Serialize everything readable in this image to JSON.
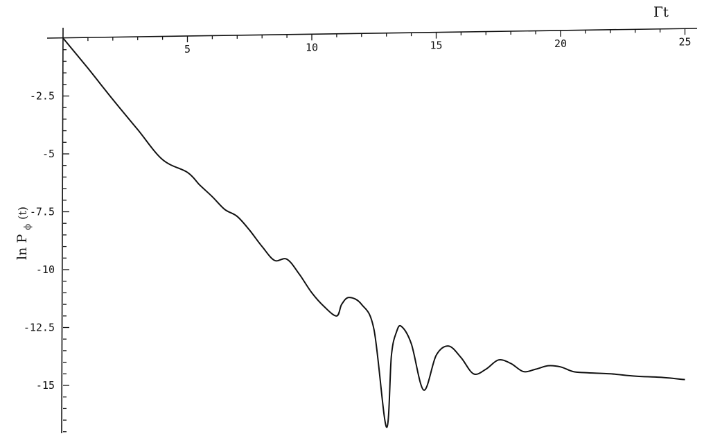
{
  "chart_data": {
    "type": "line",
    "xlabel": "Γt",
    "ylabel": "ln P",
    "ylabel_subscript": "ϕ",
    "ylabel_suffix": "(t)",
    "xlim": [
      0,
      25.5
    ],
    "ylim": [
      -17.3,
      0
    ],
    "grid": false,
    "x_ticks": [
      5,
      10,
      15,
      20,
      25
    ],
    "x_tick_labels": [
      "5",
      "10",
      "15",
      "20",
      "25"
    ],
    "y_ticks": [
      -2.5,
      -5,
      -7.5,
      -10,
      -12.5,
      -15
    ],
    "y_tick_labels": [
      "-2.5",
      "-5",
      "-7.5",
      "-10",
      "-12.5",
      "-15"
    ],
    "series": [
      {
        "x": [
          0,
          1,
          2,
          3,
          4,
          5,
          5.5,
          6,
          6.5,
          7,
          7.5,
          8,
          8.5,
          9,
          9.5,
          10,
          10.5,
          11,
          11.2,
          11.5,
          12,
          12.5,
          13,
          13.2,
          13.4,
          13.6,
          14,
          14.5,
          15,
          15.5,
          16,
          16.5,
          17,
          17.5,
          18,
          18.5,
          19,
          19.5,
          20,
          20.5,
          21,
          22,
          23,
          24,
          25
        ],
        "y": [
          0,
          -1.3,
          -2.65,
          -3.95,
          -5.25,
          -5.8,
          -6.35,
          -6.85,
          -7.4,
          -7.7,
          -8.3,
          -9.0,
          -9.6,
          -9.55,
          -10.2,
          -11.0,
          -11.6,
          -12.0,
          -11.5,
          -11.2,
          -11.5,
          -12.6,
          -16.8,
          -13.7,
          -12.7,
          -12.45,
          -13.2,
          -15.2,
          -13.7,
          -13.3,
          -13.8,
          -14.5,
          -14.3,
          -13.9,
          -14.05,
          -14.4,
          -14.3,
          -14.15,
          -14.2,
          -14.4,
          -14.45,
          -14.5,
          -14.6,
          -14.65,
          -14.75
        ]
      }
    ]
  }
}
